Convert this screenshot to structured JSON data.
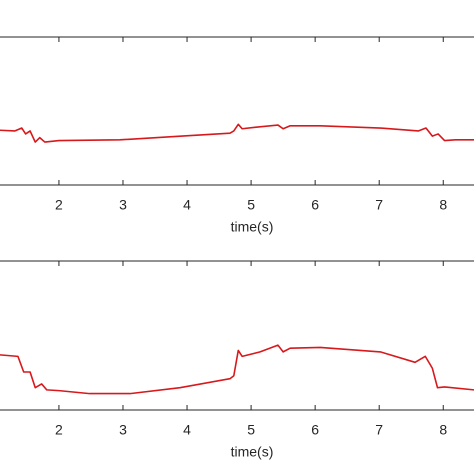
{
  "chart_data": [
    {
      "type": "line",
      "xlabel": "time(s)",
      "xlim": [
        1.08,
        8.48
      ],
      "xticks": [
        2,
        3,
        4,
        5,
        6,
        7,
        8
      ],
      "ylim": [
        0,
        1
      ],
      "color": "#d7191c",
      "x": [
        1.08,
        1.31,
        1.42,
        1.48,
        1.55,
        1.63,
        1.7,
        1.78,
        2.0,
        2.95,
        3.89,
        4.67,
        4.73,
        4.8,
        4.86,
        5.06,
        5.42,
        5.5,
        5.61,
        6.08,
        7.02,
        7.61,
        7.73,
        7.83,
        7.92,
        8.02,
        8.19,
        8.48
      ],
      "values": [
        0.37,
        0.365,
        0.385,
        0.345,
        0.365,
        0.29,
        0.32,
        0.29,
        0.3,
        0.305,
        0.33,
        0.35,
        0.365,
        0.41,
        0.38,
        0.39,
        0.405,
        0.38,
        0.4,
        0.4,
        0.385,
        0.365,
        0.385,
        0.33,
        0.345,
        0.3,
        0.305,
        0.305
      ]
    },
    {
      "type": "line",
      "xlabel": "time(s)",
      "xlim": [
        1.08,
        8.48
      ],
      "xticks": [
        2,
        3,
        4,
        5,
        6,
        7,
        8
      ],
      "ylim": [
        0,
        1
      ],
      "color": "#d7191c",
      "x": [
        1.08,
        1.36,
        1.45,
        1.55,
        1.63,
        1.73,
        1.81,
        2.0,
        2.48,
        3.11,
        3.89,
        4.67,
        4.73,
        4.8,
        4.86,
        5.14,
        5.42,
        5.5,
        5.61,
        6.08,
        7.02,
        7.56,
        7.72,
        7.83,
        7.91,
        8.02,
        8.48
      ],
      "values": [
        0.37,
        0.36,
        0.255,
        0.255,
        0.15,
        0.175,
        0.135,
        0.13,
        0.11,
        0.11,
        0.15,
        0.21,
        0.23,
        0.4,
        0.36,
        0.39,
        0.435,
        0.39,
        0.415,
        0.42,
        0.39,
        0.32,
        0.36,
        0.28,
        0.15,
        0.155,
        0.135
      ]
    }
  ]
}
